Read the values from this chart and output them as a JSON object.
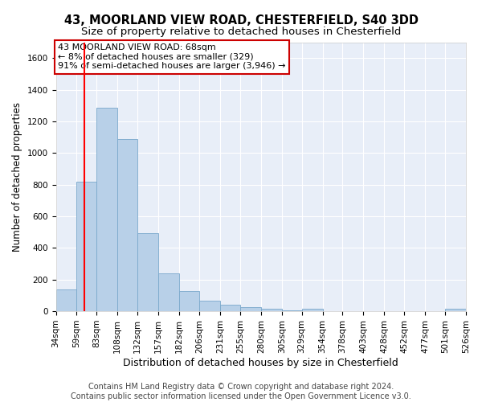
{
  "title1": "43, MOORLAND VIEW ROAD, CHESTERFIELD, S40 3DD",
  "title2": "Size of property relative to detached houses in Chesterfield",
  "xlabel": "Distribution of detached houses by size in Chesterfield",
  "ylabel": "Number of detached properties",
  "footer1": "Contains HM Land Registry data © Crown copyright and database right 2024.",
  "footer2": "Contains public sector information licensed under the Open Government Licence v3.0.",
  "annotation_title": "43 MOORLAND VIEW ROAD: 68sqm",
  "annotation_line1": "← 8% of detached houses are smaller (329)",
  "annotation_line2": "91% of semi-detached houses are larger (3,946) →",
  "bar_color": "#b8d0e8",
  "bar_edge_color": "#7aa8cc",
  "red_line_x": 68,
  "bin_edges": [
    34,
    59,
    83,
    108,
    132,
    157,
    182,
    206,
    231,
    255,
    280,
    305,
    329,
    354,
    378,
    403,
    428,
    452,
    477,
    501,
    526
  ],
  "bar_heights": [
    140,
    820,
    1285,
    1090,
    495,
    237,
    128,
    68,
    40,
    28,
    18,
    5,
    15,
    2,
    0,
    1,
    0,
    0,
    0,
    14
  ],
  "ylim": [
    0,
    1700
  ],
  "yticks": [
    0,
    200,
    400,
    600,
    800,
    1000,
    1200,
    1400,
    1600
  ],
  "background_color": "#e8eef8",
  "grid_color": "#ffffff",
  "annotation_box_color": "#ffffff",
  "annotation_box_edge": "#cc0000",
  "title1_fontsize": 10.5,
  "title2_fontsize": 9.5,
  "axis_label_fontsize": 8.5,
  "tick_fontsize": 7.5,
  "footer_fontsize": 7,
  "annotation_fontsize": 8
}
